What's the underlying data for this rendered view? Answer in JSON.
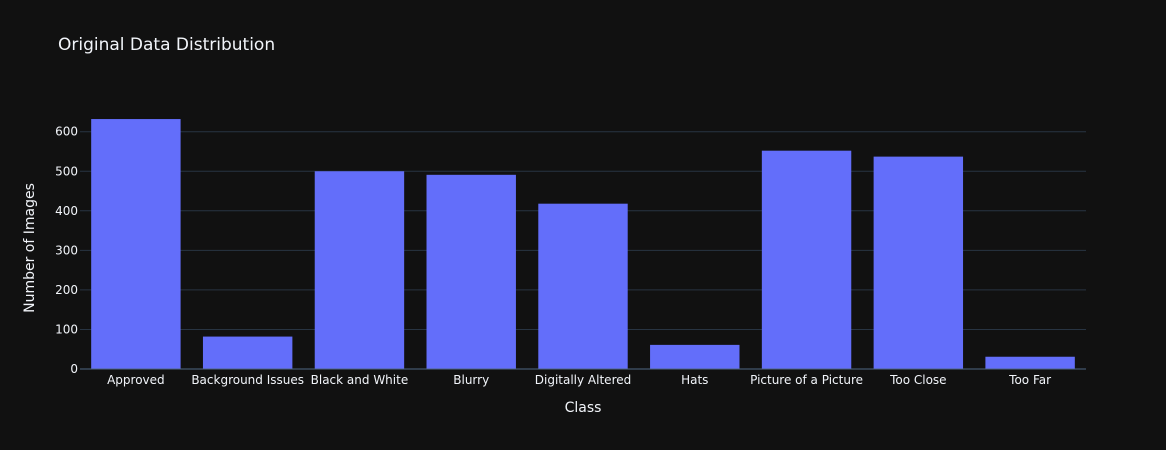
{
  "chart_data": {
    "type": "bar",
    "title": "Original Data Distribution",
    "xlabel": "Class",
    "ylabel": "Number of Images",
    "categories": [
      "Approved",
      "Background Issues",
      "Black and White",
      "Blurry",
      "Digitally Altered",
      "Hats",
      "Picture of a Picture",
      "Too Close",
      "Too Far"
    ],
    "values": [
      632,
      82,
      500,
      491,
      418,
      61,
      552,
      537,
      31
    ],
    "ylim": [
      0,
      665
    ],
    "yticks": [
      0,
      100,
      200,
      300,
      400,
      500,
      600
    ],
    "grid": true,
    "legend": "none",
    "bar_color": "#636efa",
    "background_color": "#111111",
    "grid_color": "#283442",
    "text_color": "#f2f5fa"
  }
}
